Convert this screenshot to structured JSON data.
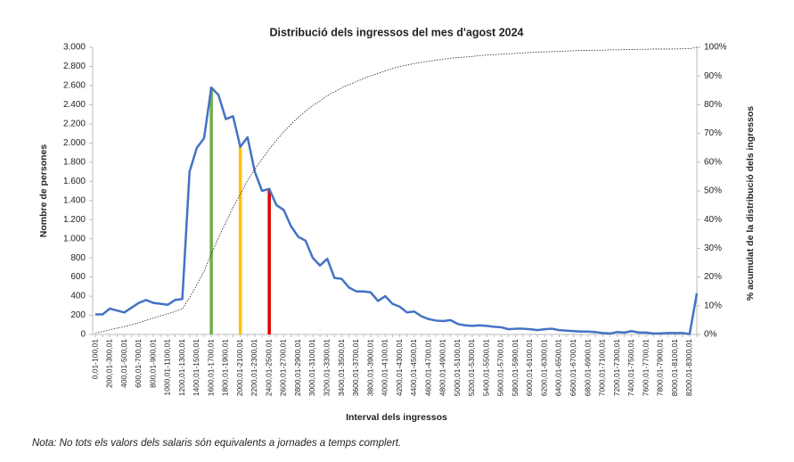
{
  "chart_data": {
    "type": "line",
    "title": "Distribució dels ingressos del mes d'agost  2024",
    "x_label": "Interval dels ingressos",
    "y_label": "Nombre de persones",
    "y2_label": "% acumulat de la distribució dels ingressos",
    "note": "Nota: No tots els valors dels salaris són equivalents a jornades a temps complert.",
    "categories": [
      "0,01-100,01",
      null,
      "200,01-300,01",
      null,
      "400,01-500,01",
      null,
      "600,01-700,01",
      null,
      "800,01-900,01",
      null,
      "1000,01-1100,01",
      null,
      "1200,01-1300,01",
      null,
      "1400,01-1500,01",
      null,
      "1600,01-1700,01",
      null,
      "1800,01-1900,01",
      null,
      "2000,01-2100,01",
      null,
      "2200,01-2300,01",
      null,
      "2400,01-2500,01",
      null,
      "2600,01-2700,01",
      null,
      "2800,01-2900,01",
      null,
      "3000,01-3100,01",
      null,
      "3200,01-3300,01",
      null,
      "3400,01-3500,01",
      null,
      "3600,01-3700,01",
      null,
      "3800,01-3900,01",
      null,
      "4000,01-4100,01",
      null,
      "4200,01-4300,01",
      null,
      "4400,01-4500,01",
      null,
      "4600,01-4700,01",
      null,
      "4800,01-4900,01",
      null,
      "5000,01-5100,01",
      null,
      "5200,01-5300,01",
      null,
      "5400,01-5500,01",
      null,
      "5600,01-5700,01",
      null,
      "5800,01-5900,01",
      null,
      "6000,01-6100,01",
      null,
      "6200,01-6300,01",
      null,
      "6400,01-6500,01",
      null,
      "6600,01-6700,01",
      null,
      "6800,01-6900,01",
      null,
      "7000,01-7100,01",
      null,
      "7200,01-7300,01",
      null,
      "7400,01-7500,01",
      null,
      "7600,01-7700,01",
      null,
      "7800,01-7900,01",
      null,
      "8000,01-8100,01",
      null,
      "8200,01-8300,01",
      null
    ],
    "series": [
      {
        "color": "#4472c4",
        "values": [
          210,
          210,
          270,
          250,
          230,
          280,
          330,
          360,
          330,
          320,
          310,
          360,
          370,
          1700,
          1950,
          2050,
          2580,
          2500,
          2250,
          2280,
          1960,
          2060,
          1700,
          1500,
          1520,
          1350,
          1300,
          1130,
          1020,
          980,
          800,
          720,
          790,
          590,
          580,
          490,
          450,
          450,
          440,
          350,
          400,
          320,
          290,
          230,
          240,
          190,
          160,
          145,
          140,
          150,
          110,
          95,
          90,
          95,
          90,
          80,
          75,
          55,
          60,
          60,
          55,
          45,
          55,
          60,
          45,
          40,
          35,
          30,
          30,
          25,
          15,
          10,
          25,
          20,
          35,
          20,
          20,
          10,
          10,
          15,
          15,
          15,
          5,
          430
        ]
      },
      {
        "color": "#222222",
        "axis": "y2",
        "values": [
          0.5,
          1.0,
          1.6,
          2.2,
          2.7,
          3.4,
          4.1,
          4.9,
          5.7,
          6.5,
          7.2,
          8.0,
          8.9,
          12.8,
          17.3,
          22.0,
          28.0,
          33.8,
          39.0,
          44.3,
          48.8,
          53.6,
          57.5,
          61.0,
          64.5,
          67.6,
          70.6,
          73.2,
          75.6,
          77.8,
          79.7,
          81.3,
          83.2,
          84.5,
          85.9,
          87.0,
          88.0,
          89.1,
          90.1,
          90.9,
          91.8,
          92.6,
          93.3,
          93.8,
          94.3,
          94.8,
          95.1,
          95.5,
          95.8,
          96.2,
          96.4,
          96.6,
          96.8,
          97.1,
          97.3,
          97.4,
          97.6,
          97.7,
          97.9,
          98.0,
          98.2,
          98.3,
          98.4,
          98.5,
          98.6,
          98.7,
          98.8,
          98.9,
          98.9,
          99.0,
          99.0,
          99.1,
          99.1,
          99.2,
          99.2,
          99.3,
          99.3,
          99.4,
          99.4,
          99.4,
          99.4,
          99.5,
          99.5,
          100
        ]
      }
    ],
    "highlights": [
      {
        "category": "1600,01-1700,01",
        "value": 2580,
        "color": "#70ad47"
      },
      {
        "category": "2000,01-2100,01",
        "value": 1960,
        "color": "#ffc000"
      },
      {
        "category": "2400,01-2500,01",
        "value": 1520,
        "color": "#e00000"
      }
    ],
    "ylim": [
      0,
      3000
    ],
    "yticks": [
      0,
      {
        "value": 200,
        "label": "200"
      },
      {
        "value": 400,
        "label": "400"
      },
      {
        "value": 600,
        "label": "600"
      },
      {
        "value": 800,
        "label": "800"
      },
      {
        "value": 1000,
        "label": "1.000"
      },
      {
        "value": 1200,
        "label": "1.200"
      },
      {
        "value": 1400,
        "label": "1.400"
      },
      {
        "value": 1600,
        "label": "1.600"
      },
      {
        "value": 1800,
        "label": "1.800"
      },
      {
        "value": 2000,
        "label": "2.000"
      },
      {
        "value": 2200,
        "label": "2.200"
      },
      {
        "value": 2400,
        "label": "2.400"
      },
      {
        "value": 2600,
        "label": "2.600"
      },
      {
        "value": 2800,
        "label": "2.800"
      },
      {
        "value": 3000,
        "label": "3.000"
      }
    ],
    "y2lim": [
      0,
      100
    ],
    "y2ticks": [
      {
        "value": 0,
        "label": "0%"
      },
      {
        "value": 10,
        "label": "10%"
      },
      {
        "value": 20,
        "label": "20%"
      },
      {
        "value": 30,
        "label": "30%"
      },
      {
        "value": 40,
        "label": "40%"
      },
      {
        "value": 50,
        "label": "50%"
      },
      {
        "value": 60,
        "label": "60%"
      },
      {
        "value": 70,
        "label": "70%"
      },
      {
        "value": 80,
        "label": "80%"
      },
      {
        "value": 90,
        "label": "90%"
      },
      {
        "value": 100,
        "label": "100%"
      }
    ],
    "grid": false
  }
}
